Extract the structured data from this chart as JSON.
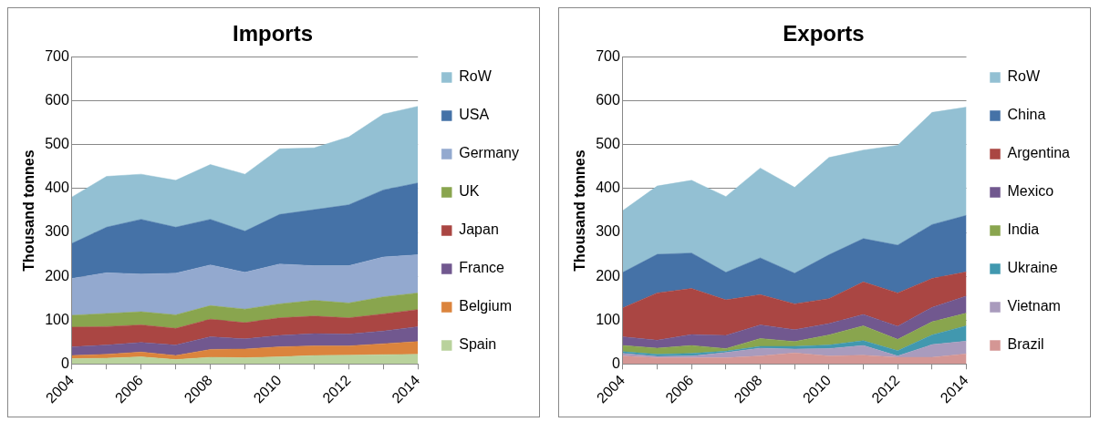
{
  "chart_data": [
    {
      "type": "area",
      "title": "Imports",
      "ylabel": "Thousand tonnes",
      "stacked": true,
      "legend": "right",
      "grid": "y",
      "x": [
        2004,
        2005,
        2006,
        2007,
        2008,
        2009,
        2010,
        2011,
        2012,
        2013,
        2014
      ],
      "xlim": [
        2004,
        2014
      ],
      "xticks": [
        2004,
        {
          "value": 2005,
          "label": null
        },
        2006,
        {
          "value": 2007,
          "label": null
        },
        2008,
        {
          "value": 2009,
          "label": null
        },
        2010,
        {
          "value": 2011,
          "label": null
        },
        2012,
        {
          "value": 2013,
          "label": null
        },
        2014
      ],
      "ylim": [
        0,
        700
      ],
      "yticks": [
        0,
        100,
        200,
        300,
        400,
        500,
        600,
        700
      ],
      "series": [
        {
          "name": "Spain",
          "color": "#b9d29c",
          "values": [
            12,
            13,
            16,
            10,
            15,
            14,
            16,
            19,
            20,
            21,
            22
          ]
        },
        {
          "name": "Belgium",
          "color": "#db843d",
          "values": [
            7,
            9,
            11,
            9,
            18,
            20,
            23,
            22,
            21,
            25,
            29
          ]
        },
        {
          "name": "France",
          "color": "#71588f",
          "values": [
            20,
            21,
            22,
            24,
            29,
            23,
            26,
            28,
            27,
            29,
            34
          ]
        },
        {
          "name": "Japan",
          "color": "#aa4643",
          "values": [
            45,
            42,
            40,
            38,
            40,
            37,
            40,
            40,
            37,
            39,
            39
          ]
        },
        {
          "name": "UK",
          "color": "#89a54e",
          "values": [
            27,
            30,
            30,
            31,
            31,
            31,
            32,
            36,
            34,
            39,
            38
          ]
        },
        {
          "name": "Germany",
          "color": "#93a9cf",
          "values": [
            84,
            93,
            86,
            95,
            93,
            84,
            91,
            79,
            85,
            91,
            87
          ]
        },
        {
          "name": "USA",
          "color": "#4572a7",
          "values": [
            80,
            104,
            125,
            105,
            104,
            94,
            113,
            128,
            139,
            153,
            164
          ]
        },
        {
          "name": "RoW",
          "color": "#93c0d3",
          "values": [
            106,
            116,
            103,
            107,
            125,
            130,
            150,
            141,
            155,
            173,
            175
          ]
        }
      ]
    },
    {
      "type": "area",
      "title": "Exports",
      "ylabel": "Thousand tonnes",
      "stacked": true,
      "legend": "right",
      "grid": "y",
      "x": [
        2004,
        2005,
        2006,
        2007,
        2008,
        2009,
        2010,
        2011,
        2012,
        2013,
        2014
      ],
      "xlim": [
        2004,
        2014
      ],
      "xticks": [
        2004,
        {
          "value": 2005,
          "label": null
        },
        2006,
        {
          "value": 2007,
          "label": null
        },
        2008,
        {
          "value": 2009,
          "label": null
        },
        2010,
        {
          "value": 2011,
          "label": null
        },
        2012,
        {
          "value": 2013,
          "label": null
        },
        2014
      ],
      "ylim": [
        0,
        700
      ],
      "yticks": [
        0,
        100,
        200,
        300,
        400,
        500,
        600,
        700
      ],
      "series": [
        {
          "name": "Brazil",
          "color": "#d49694",
          "values": [
            18,
            14,
            14,
            14,
            18,
            25,
            18,
            20,
            15,
            15,
            23
          ]
        },
        {
          "name": "Vietnam",
          "color": "#a99bbd",
          "values": [
            6,
            3,
            4,
            12,
            18,
            9,
            17,
            22,
            3,
            29,
            29
          ]
        },
        {
          "name": "Ukraine",
          "color": "#4198af",
          "values": [
            4,
            5,
            6,
            3,
            4,
            6,
            8,
            11,
            12,
            22,
            35
          ]
        },
        {
          "name": "India",
          "color": "#89a54e",
          "values": [
            14,
            14,
            18,
            6,
            18,
            11,
            23,
            34,
            26,
            30,
            29
          ]
        },
        {
          "name": "Mexico",
          "color": "#71588f",
          "values": [
            20,
            18,
            25,
            30,
            31,
            27,
            26,
            26,
            30,
            33,
            39
          ]
        },
        {
          "name": "Argentina",
          "color": "#aa4643",
          "values": [
            66,
            108,
            105,
            81,
            69,
            59,
            57,
            74,
            76,
            66,
            55
          ]
        },
        {
          "name": "China",
          "color": "#4572a7",
          "values": [
            81,
            88,
            81,
            63,
            84,
            70,
            100,
            99,
            109,
            123,
            129
          ]
        },
        {
          "name": "RoW",
          "color": "#93c0d3",
          "values": [
            141,
            156,
            166,
            173,
            205,
            196,
            222,
            202,
            228,
            256,
            247
          ]
        }
      ]
    }
  ]
}
